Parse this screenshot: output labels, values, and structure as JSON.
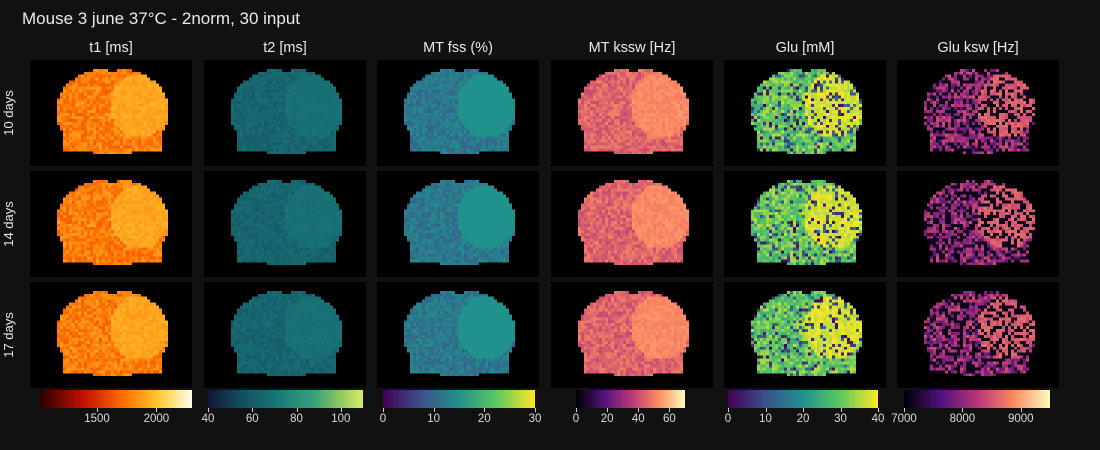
{
  "figure": {
    "title": "Mouse 3 june 37°C - 2norm, 30 input"
  },
  "chart_data": {
    "type": "heatmap",
    "title": "Mouse 3 june 37°C - 2norm, 30 input",
    "grid": false,
    "rows": [
      "10 days",
      "14 days",
      "17 days"
    ],
    "columns": [
      {
        "name": "t1 [ms]",
        "colormap": "hot",
        "range": [
          1020,
          2300
        ],
        "ticks": [
          1500,
          2000
        ],
        "typical": [
          1500,
          1950
        ]
      },
      {
        "name": "t2 [ms]",
        "colormap": "haline",
        "range": [
          40,
          110
        ],
        "ticks": [
          40,
          60,
          80,
          100
        ],
        "typical": [
          55,
          70
        ]
      },
      {
        "name": "MT fss (%)",
        "colormap": "viridis",
        "range": [
          0,
          30
        ],
        "ticks": [
          0,
          10,
          20,
          30
        ],
        "typical": [
          6,
          16
        ]
      },
      {
        "name": "MT kssw [Hz]",
        "colormap": "magma",
        "range": [
          0,
          70
        ],
        "ticks": [
          0,
          20,
          40,
          60
        ],
        "typical": [
          30,
          55
        ]
      },
      {
        "name": "Glu [mM]",
        "colormap": "viridis",
        "range": [
          0,
          40
        ],
        "ticks": [
          0,
          10,
          20,
          30,
          40
        ],
        "typical": [
          15,
          40
        ]
      },
      {
        "name": "Glu ksw [Hz]",
        "colormap": "magma",
        "range": [
          7000,
          9500
        ],
        "ticks": [
          7000,
          8000,
          9000
        ],
        "typical": [
          7100,
          8700
        ]
      }
    ]
  }
}
